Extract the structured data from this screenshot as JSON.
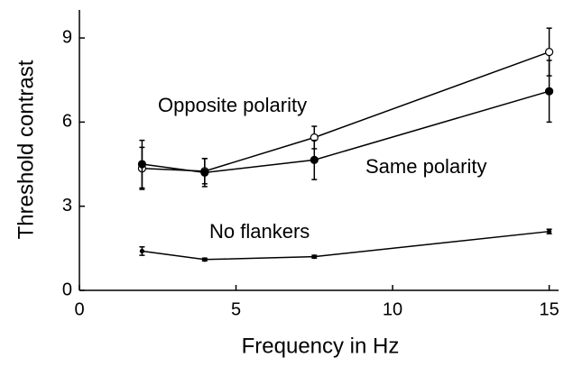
{
  "chart_data": {
    "type": "line",
    "x_label": "Frequency in Hz",
    "y_label": "Threshold contrast",
    "x": [
      2,
      4,
      7.5,
      15
    ],
    "series": [
      {
        "name": "Opposite polarity",
        "color": "#000000",
        "marker": "open",
        "values": [
          4.35,
          4.25,
          5.45,
          8.5
        ],
        "errors": [
          0.75,
          0.45,
          0.4,
          0.85
        ]
      },
      {
        "name": "Same polarity",
        "color": "#000000",
        "marker": "filled",
        "values": [
          4.5,
          4.2,
          4.65,
          7.1
        ],
        "errors": [
          0.85,
          0.5,
          0.7,
          1.1
        ]
      },
      {
        "name": "No flankers",
        "color": "#000000",
        "marker": "small",
        "values": [
          1.4,
          1.1,
          1.2,
          2.1
        ],
        "errors": [
          0.15,
          0.05,
          0.05,
          0.08
        ]
      }
    ],
    "xlim": [
      0,
      15.3
    ],
    "ylim": [
      0,
      10
    ],
    "xticks": [
      0,
      5,
      10,
      15
    ],
    "yticks": [
      0,
      3,
      6,
      9
    ],
    "grid": false
  }
}
